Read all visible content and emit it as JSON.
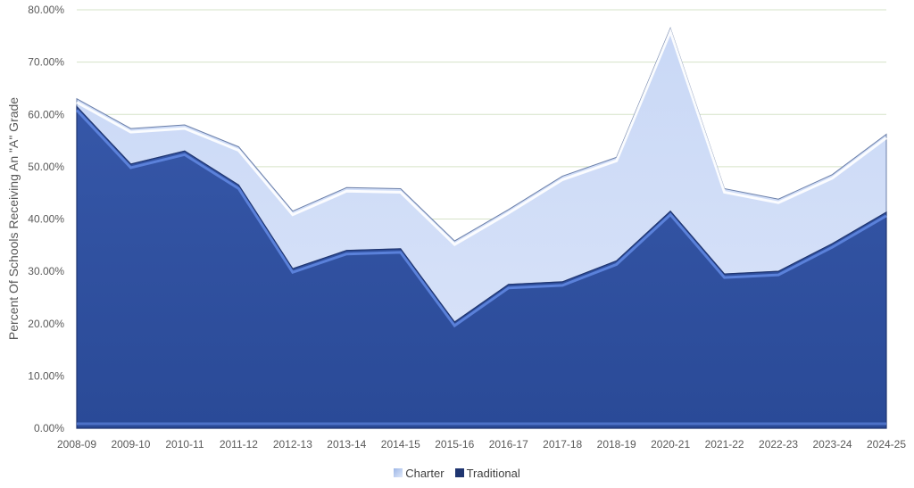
{
  "chart_data": {
    "type": "area",
    "stacked": true,
    "categories": [
      "2008-09",
      "2009-10",
      "2010-11",
      "2011-12",
      "2012-13",
      "2013-14",
      "2014-15",
      "2015-16",
      "2016-17",
      "2017-18",
      "2018-19",
      "2020-21",
      "2021-22",
      "2022-23",
      "2023-24",
      "2024-25"
    ],
    "series": [
      {
        "name": "Traditional",
        "color": "#2e4f9e",
        "values": [
          61.5,
          50.5,
          53.0,
          46.5,
          30.5,
          34.0,
          34.3,
          20.3,
          27.5,
          28.0,
          32.0,
          41.5,
          29.5,
          30.0,
          35.3,
          41.3
        ]
      },
      {
        "name": "Charter",
        "color": "#cfdcf7",
        "values": [
          1.5,
          6.8,
          5.0,
          7.3,
          11.0,
          12.0,
          11.5,
          15.5,
          14.3,
          20.2,
          19.8,
          35.0,
          16.3,
          13.8,
          13.2,
          14.9
        ]
      }
    ],
    "ylabel": "Percent Of Schools Receiving An \"A\" Grade",
    "ylim": [
      0,
      80
    ],
    "yticks": [
      "0.00%",
      "10.00%",
      "20.00%",
      "30.00%",
      "40.00%",
      "50.00%",
      "60.00%",
      "70.00%",
      "80.00%"
    ],
    "grid": true,
    "legend_position": "bottom",
    "legend_order": [
      "Charter",
      "Traditional"
    ]
  }
}
